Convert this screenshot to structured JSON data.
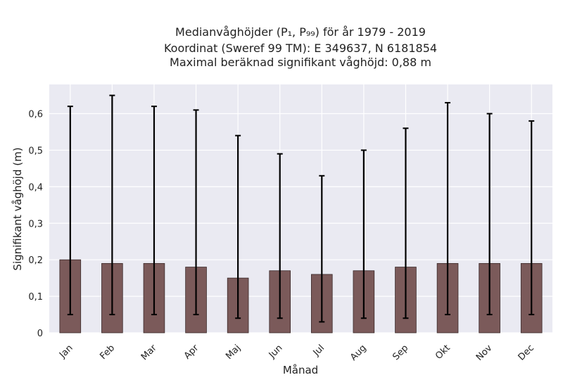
{
  "chart_data": {
    "type": "bar",
    "title_lines": [
      "Medianvåghöjder (P₁, P₉₉) för år 1979 - 2019",
      "Koordinat (Sweref 99 TM): E 349637, N 6181854",
      "Maximal beräknad signifikant våghöjd: 0,88 m"
    ],
    "xlabel": "Månad",
    "ylabel": "Signifikant våghöjd (m)",
    "categories": [
      "Jan",
      "Feb",
      "Mar",
      "Apr",
      "Maj",
      "Jun",
      "Jul",
      "Aug",
      "Sep",
      "Okt",
      "Nov",
      "Dec"
    ],
    "values": [
      0.2,
      0.19,
      0.19,
      0.18,
      0.15,
      0.17,
      0.16,
      0.17,
      0.18,
      0.19,
      0.19,
      0.19
    ],
    "p1": [
      0.05,
      0.05,
      0.05,
      0.05,
      0.04,
      0.04,
      0.03,
      0.04,
      0.04,
      0.05,
      0.05,
      0.05
    ],
    "p99": [
      0.62,
      0.65,
      0.62,
      0.61,
      0.54,
      0.49,
      0.43,
      0.5,
      0.56,
      0.63,
      0.6,
      0.58
    ],
    "ylim": [
      0,
      0.68
    ],
    "yticks": [
      0,
      0.1,
      0.2,
      0.3,
      0.4,
      0.5,
      0.6
    ],
    "ytick_labels": [
      "0",
      "0,1",
      "0,2",
      "0,3",
      "0,4",
      "0,5",
      "0,6"
    ],
    "grid": true,
    "colors": {
      "bar": "#7b5a5a",
      "bar_edge": "#3a2a2a",
      "error": "#000000",
      "plot_bg": "#eaeaf2",
      "grid": "#ffffff"
    }
  }
}
